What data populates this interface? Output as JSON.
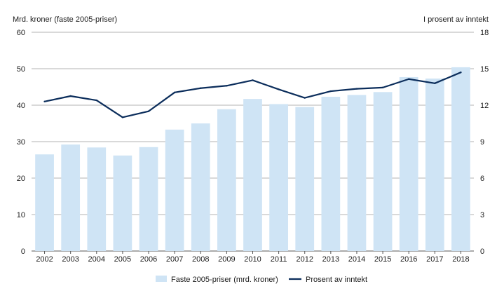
{
  "chart_data": {
    "type": "bar",
    "title": "",
    "ylabel_left": "Mrd. kroner (faste 2005-priser)",
    "ylabel_right": "I prosent av inntekt",
    "categories": [
      "2002",
      "2003",
      "2004",
      "2005",
      "2006",
      "2007",
      "2008",
      "2009",
      "2010",
      "2011",
      "2012",
      "2013",
      "2014",
      "2015",
      "2016",
      "2017",
      "2018"
    ],
    "ylim_left": [
      0,
      60
    ],
    "yticks_left": [
      "0",
      "10",
      "20",
      "30",
      "40",
      "50",
      "60"
    ],
    "ylim_right": [
      0,
      18
    ],
    "yticks_right": [
      "0",
      "3",
      "6",
      "9",
      "12",
      "15",
      "18"
    ],
    "grid": true,
    "legend_position": "bottom",
    "series": [
      {
        "name": "Faste 2005-priser (mrd. kroner)",
        "kind": "bar",
        "axis": "left",
        "color": "#cfe4f5",
        "values": [
          26.5,
          29.2,
          28.4,
          26.2,
          28.5,
          33.3,
          35.0,
          38.9,
          41.7,
          40.3,
          39.5,
          42.3,
          42.8,
          43.6,
          47.7,
          47.3,
          50.4
        ]
      },
      {
        "name": "Prosent av inntekt",
        "kind": "line",
        "axis": "right",
        "color": "#0b2d5b",
        "values": [
          12.3,
          12.75,
          12.4,
          11.0,
          11.5,
          13.05,
          13.4,
          13.6,
          14.05,
          13.3,
          12.6,
          13.15,
          13.35,
          13.45,
          14.15,
          13.8,
          14.7
        ]
      }
    ]
  }
}
